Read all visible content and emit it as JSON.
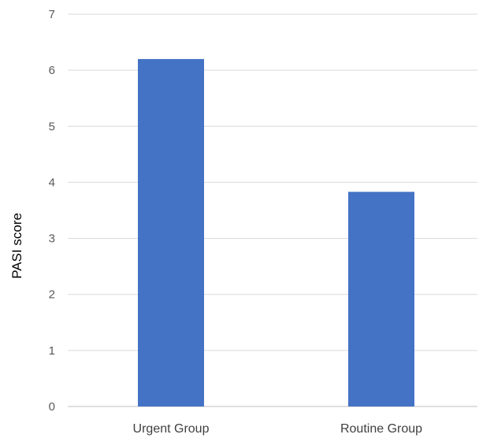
{
  "chart_data": {
    "type": "bar",
    "categories": [
      "Urgent Group",
      "Routine Group"
    ],
    "values": [
      6.2,
      3.83
    ],
    "title": "",
    "xlabel": "",
    "ylabel": "PASI score",
    "ylim": [
      0,
      7
    ],
    "yticks": [
      "0",
      "1",
      "2",
      "3",
      "4",
      "5",
      "6",
      "7"
    ],
    "grid": true,
    "legend": "none",
    "colors": {
      "bar": "#4472C4",
      "grid": "#D9D9D9",
      "axis": "#BFBFBF"
    }
  }
}
